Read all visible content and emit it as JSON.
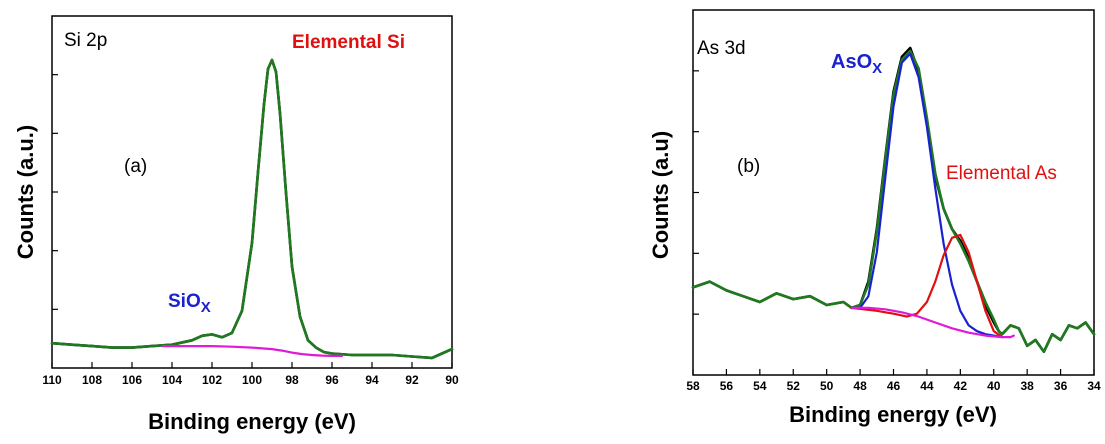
{
  "chart_data": [
    {
      "type": "line",
      "panel_label": "(a)",
      "region_label": "Si 2p",
      "xlabel": "Binding energy (eV)",
      "ylabel": "Counts (a.u.)",
      "xlim": [
        110,
        90
      ],
      "x_reversed": true,
      "y_ticks_labelled": false,
      "x_ticks": [
        "110",
        "108",
        "106",
        "104",
        "102",
        "100",
        "98",
        "96",
        "94",
        "92",
        "90"
      ],
      "annotations": [
        {
          "text": "Elemental Si",
          "color": "#e01010",
          "x": 98.7,
          "y": 1.02
        },
        {
          "text": "SiO",
          "subscript": "X",
          "color": "#1a22d0",
          "x": 102.6,
          "y": 0.13
        }
      ],
      "series": [
        {
          "color": "#000000",
          "x": [
            110,
            109,
            108,
            107,
            106,
            105,
            104,
            103,
            102.5,
            102,
            101.5,
            101,
            100.5,
            100,
            99.7,
            99.4,
            99.2,
            99,
            98.8,
            98.6,
            98.3,
            98,
            97.6,
            97.2,
            96.8,
            96.4,
            96,
            95,
            94,
            93,
            92,
            91,
            90.5,
            90
          ],
          "y": [
            0.04,
            0.035,
            0.03,
            0.025,
            0.025,
            0.03,
            0.035,
            0.05,
            0.065,
            0.07,
            0.06,
            0.075,
            0.15,
            0.38,
            0.62,
            0.85,
            0.97,
            1.0,
            0.96,
            0.82,
            0.55,
            0.3,
            0.13,
            0.05,
            0.025,
            0.01,
            0.005,
            0.0,
            0.0,
            0.0,
            -0.005,
            -0.01,
            0.005,
            0.02
          ]
        },
        {
          "color": "#1f7a1f",
          "x": [
            110,
            109,
            108,
            107,
            106,
            105,
            104,
            103,
            102.5,
            102,
            101.5,
            101,
            100.5,
            100,
            99.7,
            99.4,
            99.2,
            99,
            98.8,
            98.6,
            98.3,
            98,
            97.6,
            97.2,
            96.8,
            96.4,
            96,
            95,
            94,
            93,
            92,
            91,
            90.5,
            90
          ],
          "y": [
            0.04,
            0.035,
            0.03,
            0.025,
            0.025,
            0.03,
            0.035,
            0.05,
            0.065,
            0.07,
            0.06,
            0.075,
            0.15,
            0.38,
            0.62,
            0.85,
            0.97,
            1.0,
            0.96,
            0.82,
            0.55,
            0.3,
            0.13,
            0.05,
            0.025,
            0.01,
            0.005,
            0.0,
            0.0,
            0.0,
            -0.005,
            -0.01,
            0.005,
            0.02
          ]
        },
        {
          "color": "#e01ad6",
          "x": [
            104.5,
            104,
            103,
            102,
            101,
            100,
            99,
            98.5,
            98,
            97.5,
            97,
            96.5,
            96,
            95.5
          ],
          "y": [
            0.03,
            0.03,
            0.03,
            0.03,
            0.028,
            0.025,
            0.02,
            0.015,
            0.008,
            0.003,
            0.0,
            -0.002,
            -0.003,
            -0.003
          ]
        }
      ]
    },
    {
      "type": "line",
      "panel_label": "(b)",
      "region_label": "As 3d",
      "xlabel": "Binding energy (eV)",
      "ylabel": "Counts (a.u)",
      "xlim": [
        58,
        34
      ],
      "x_reversed": true,
      "y_ticks_labelled": false,
      "x_ticks": [
        "58",
        "56",
        "54",
        "52",
        "50",
        "48",
        "46",
        "44",
        "42",
        "40",
        "38",
        "36",
        "34"
      ],
      "annotations": [
        {
          "text": "AsO",
          "subscript": "X",
          "color": "#1a22d0",
          "x": 47.2,
          "y": 0.99
        },
        {
          "text": "Elemental As",
          "color": "#e01010",
          "x": 38.7,
          "y": 0.62
        }
      ],
      "series": [
        {
          "color": "#000000",
          "x": [
            58,
            57,
            56,
            55,
            54,
            53,
            52,
            51,
            50,
            49,
            48.5,
            48,
            47.5,
            47,
            46.5,
            46,
            45.5,
            45,
            44.5,
            44,
            43.5,
            43,
            42.5,
            42,
            41.5,
            41,
            40.5,
            40,
            39.7,
            39.5,
            39,
            38.5,
            38,
            37.5,
            37,
            36.5,
            36,
            35.5,
            35,
            34.5,
            34
          ],
          "y": [
            0.18,
            0.2,
            0.17,
            0.15,
            0.13,
            0.16,
            0.14,
            0.15,
            0.12,
            0.13,
            0.11,
            0.12,
            0.2,
            0.38,
            0.62,
            0.85,
            0.97,
            1.0,
            0.92,
            0.75,
            0.56,
            0.45,
            0.38,
            0.34,
            0.28,
            0.2,
            0.12,
            0.06,
            0.03,
            0.02,
            0.05,
            0.04,
            -0.02,
            0.0,
            -0.04,
            0.02,
            0.0,
            0.05,
            0.04,
            0.06,
            0.02
          ]
        },
        {
          "color": "#1f7a1f",
          "x": [
            58,
            57,
            56,
            55,
            54,
            53,
            52,
            51,
            50,
            49,
            48.5,
            48,
            47.5,
            47,
            46.5,
            46,
            45.5,
            45,
            44.5,
            44,
            43.5,
            43,
            42.5,
            42,
            41.5,
            41,
            40.5,
            40,
            39.7,
            39.5,
            39,
            38.5,
            38,
            37.5,
            37,
            36.5,
            36,
            35.5,
            35,
            34.5,
            34
          ],
          "y": [
            0.18,
            0.2,
            0.17,
            0.15,
            0.13,
            0.16,
            0.14,
            0.15,
            0.12,
            0.13,
            0.11,
            0.12,
            0.19,
            0.37,
            0.61,
            0.84,
            0.96,
            0.99,
            0.93,
            0.76,
            0.57,
            0.45,
            0.38,
            0.33,
            0.27,
            0.2,
            0.13,
            0.07,
            0.03,
            0.02,
            0.05,
            0.04,
            -0.02,
            0.0,
            -0.04,
            0.02,
            0.0,
            0.05,
            0.04,
            0.06,
            0.02
          ]
        },
        {
          "color": "#1a22d0",
          "x": [
            48.5,
            48,
            47.5,
            47,
            46.5,
            46,
            45.5,
            45,
            44.5,
            44,
            43.5,
            43,
            42.5,
            42,
            41.5,
            41,
            40.5,
            40,
            39.5
          ],
          "y": [
            0.11,
            0.11,
            0.15,
            0.3,
            0.55,
            0.8,
            0.95,
            0.98,
            0.9,
            0.73,
            0.52,
            0.33,
            0.19,
            0.1,
            0.05,
            0.03,
            0.02,
            0.015,
            0.01
          ]
        },
        {
          "color": "#e01010",
          "x": [
            48.5,
            47,
            46,
            45.2,
            44.6,
            44,
            43.5,
            43,
            42.5,
            42,
            41.5,
            41,
            40.5,
            40,
            39.5
          ],
          "y": [
            0.11,
            0.1,
            0.09,
            0.08,
            0.09,
            0.13,
            0.2,
            0.29,
            0.35,
            0.36,
            0.3,
            0.2,
            0.1,
            0.03,
            0.01
          ]
        },
        {
          "color": "#e01ad6",
          "x": [
            48.5,
            47.5,
            46.5,
            45.5,
            44.5,
            43.5,
            42.5,
            41.5,
            40.5,
            39.5,
            39,
            38.8
          ],
          "y": [
            0.11,
            0.11,
            0.105,
            0.095,
            0.08,
            0.06,
            0.04,
            0.025,
            0.015,
            0.01,
            0.01,
            0.015
          ]
        }
      ]
    }
  ]
}
